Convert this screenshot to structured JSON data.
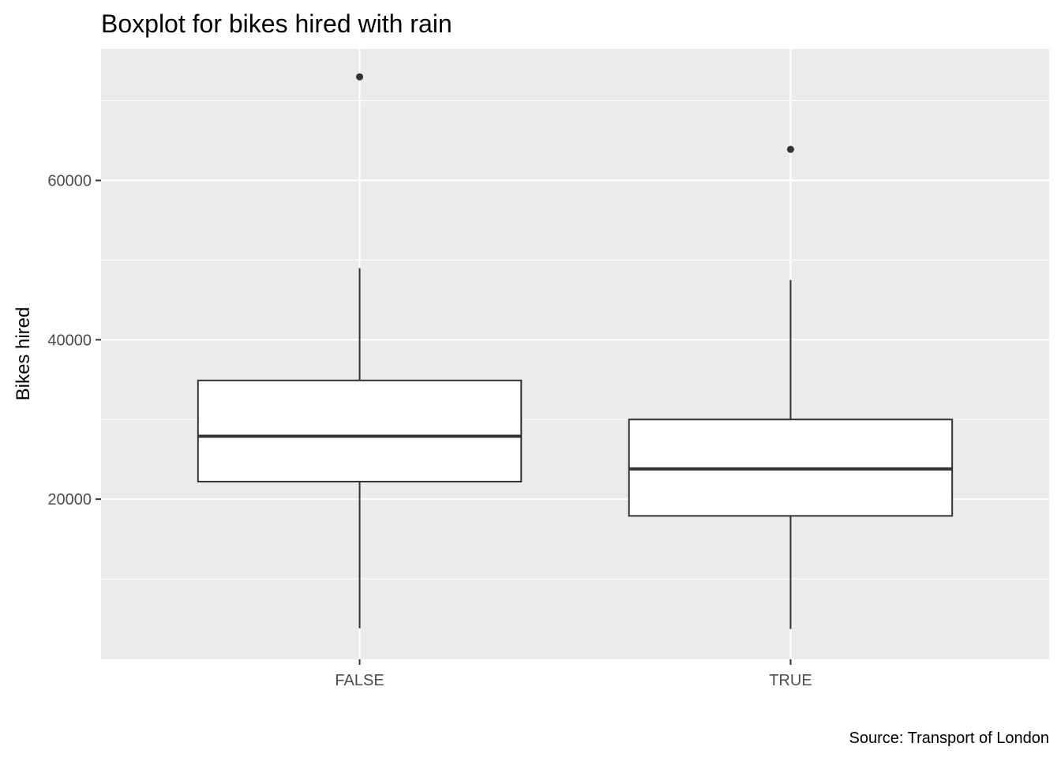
{
  "chart_data": {
    "type": "boxplot",
    "title": "Boxplot for bikes hired with rain",
    "xlabel": "",
    "ylabel": "Bikes hired",
    "caption": "Source: Transport of London",
    "categories": [
      "FALSE",
      "TRUE"
    ],
    "boxes": [
      {
        "category": "FALSE",
        "whisker_low": 3800,
        "q1": 22200,
        "median": 27900,
        "q3": 34900,
        "whisker_high": 49000,
        "outliers": [
          73000
        ]
      },
      {
        "category": "TRUE",
        "whisker_low": 3700,
        "q1": 17900,
        "median": 23800,
        "q3": 30000,
        "whisker_high": 47500,
        "outliers": [
          63900
        ]
      }
    ],
    "ylim": [
      -100,
      76500
    ],
    "y_ticks": [
      20000,
      40000,
      60000
    ],
    "y_tick_labels": [
      "20000",
      "40000",
      "60000"
    ],
    "grid": true,
    "colors": {
      "panel_bg": "#ebebeb",
      "grid": "#ffffff",
      "box_fill": "#ffffff",
      "box_line": "#333333",
      "tick": "#333333"
    }
  }
}
